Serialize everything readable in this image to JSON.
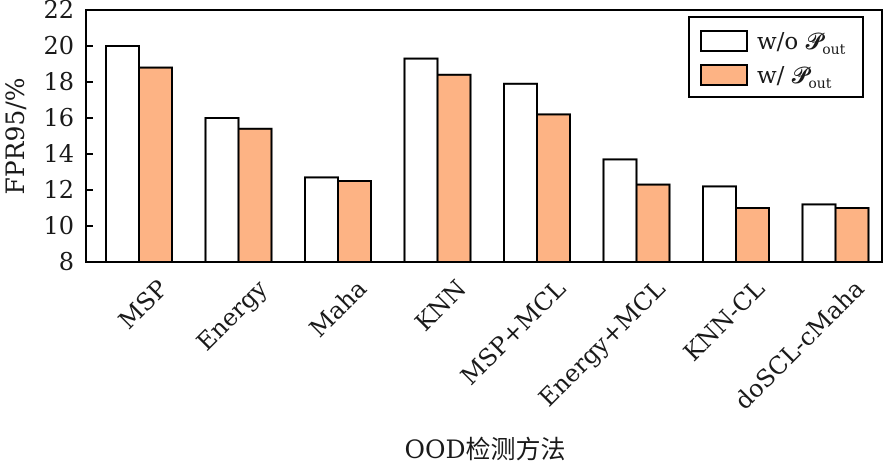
{
  "chart_data": {
    "type": "bar",
    "categories": [
      "MSP",
      "Energy",
      "Maha",
      "KNN",
      "MSP+MCL",
      "Energy+MCL",
      "KNN-CL",
      "doSCL-cMaha"
    ],
    "series": [
      {
        "name": "w/o 𝓟out",
        "name_main": "w/o 𝓟",
        "name_sub": "out",
        "color": "#ffffff",
        "values": [
          20.0,
          16.0,
          12.7,
          19.3,
          17.9,
          13.7,
          12.2,
          11.2
        ]
      },
      {
        "name": "w/ 𝓟out",
        "name_main": "w/ 𝓟",
        "name_sub": "out",
        "color": "#fdb384",
        "values": [
          18.8,
          15.4,
          12.5,
          18.4,
          16.2,
          12.3,
          11.0,
          11.0
        ]
      }
    ],
    "xlabel": "OOD检测方法",
    "ylabel": "FPR95/%",
    "ylim": [
      8,
      22
    ],
    "yticks": [
      8,
      10,
      12,
      14,
      16,
      18,
      20,
      22
    ],
    "legend_position": "top-right",
    "grid": false
  }
}
